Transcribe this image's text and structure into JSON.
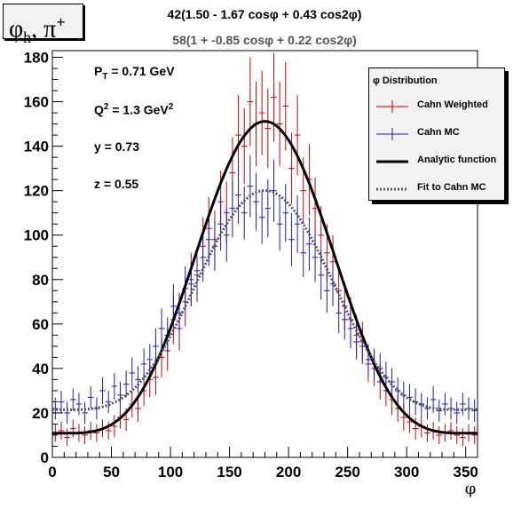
{
  "page": {
    "title_box": {
      "text": "φ",
      "subscript": "h",
      "separator": ", π",
      "superscript": "+"
    },
    "fit_line_1": "42(1.50 - 1.67 cosφ + 0.43 cos2φ)",
    "fit_line_2": "58(1 + -0.85 cosφ + 0.22 cos2φ)",
    "kinematics": {
      "pt_label": "P",
      "pt_sub": "T",
      "pt_value": " = 0.71 GeV",
      "q2_label": "Q",
      "q2_sup": "2",
      "q2_value": " = 1.3 GeV",
      "q2_unit_sup": "2",
      "y_text": "y = 0.73",
      "z_text": "z = 0.55"
    },
    "legend": {
      "header": "φ Distribution",
      "items": [
        {
          "label": "Cahn Weighted",
          "style": "errorbar",
          "color": "#cc0000"
        },
        {
          "label": "Cahn MC",
          "style": "errorbar",
          "color": "#1a1acc"
        },
        {
          "label": "Analytic function",
          "style": "solid",
          "color": "#000000"
        },
        {
          "label": "Fit to Cahn MC",
          "style": "dotted",
          "color": "#555555"
        }
      ]
    }
  },
  "chart_data": {
    "type": "line",
    "xlabel": "φ",
    "ylabel": "",
    "xlim": [
      0,
      360
    ],
    "ylim": [
      0,
      183
    ],
    "xticks": [
      0,
      50,
      100,
      150,
      200,
      250,
      300,
      350
    ],
    "yticks": [
      0,
      20,
      40,
      60,
      80,
      100,
      120,
      140,
      160,
      180
    ],
    "grid": false,
    "legend_position": "top-right",
    "bin_width": 5,
    "curves": [
      {
        "name": "Analytic function",
        "formula": "42(1.50 - 1.67 cosφ + 0.43 cos2φ)",
        "norm": 42,
        "a0": 1.5,
        "a1": -1.67,
        "a2": 0.43,
        "color": "#000000",
        "style": "solid"
      },
      {
        "name": "Fit to Cahn MC",
        "formula": "58(1 + -0.85 cosφ + 0.22 cos2φ)",
        "norm": 58,
        "a0": 1.0,
        "a1": -0.85,
        "a2": 0.22,
        "color": "#555555",
        "style": "dotted"
      }
    ],
    "series": [
      {
        "name": "Cahn Weighted",
        "color": "#cc0000",
        "x": [
          2.5,
          7.5,
          12.5,
          17.5,
          22.5,
          27.5,
          32.5,
          37.5,
          42.5,
          47.5,
          52.5,
          57.5,
          62.5,
          67.5,
          72.5,
          77.5,
          82.5,
          87.5,
          92.5,
          97.5,
          102.5,
          107.5,
          112.5,
          117.5,
          122.5,
          127.5,
          132.5,
          137.5,
          142.5,
          147.5,
          152.5,
          157.5,
          162.5,
          167.5,
          172.5,
          177.5,
          182.5,
          187.5,
          192.5,
          197.5,
          202.5,
          207.5,
          212.5,
          217.5,
          222.5,
          227.5,
          232.5,
          237.5,
          242.5,
          247.5,
          252.5,
          257.5,
          262.5,
          267.5,
          272.5,
          277.5,
          282.5,
          287.5,
          292.5,
          297.5,
          302.5,
          307.5,
          312.5,
          317.5,
          322.5,
          327.5,
          332.5,
          337.5,
          342.5,
          347.5,
          352.5,
          357.5
        ],
        "y": [
          11,
          12,
          9,
          13,
          11,
          10,
          12,
          11,
          13,
          12,
          14,
          18,
          17,
          24,
          22,
          30,
          35,
          36,
          45,
          48,
          62,
          58,
          70,
          80,
          82,
          95,
          103,
          98,
          115,
          110,
          128,
          145,
          140,
          160,
          150,
          155,
          148,
          162,
          150,
          158,
          130,
          145,
          120,
          125,
          112,
          100,
          92,
          88,
          75,
          68,
          62,
          55,
          52,
          42,
          40,
          34,
          30,
          26,
          22,
          18,
          16,
          13,
          14,
          11,
          12,
          10,
          11,
          12,
          10,
          9,
          11,
          10
        ],
        "err": [
          4,
          4,
          4,
          4,
          4,
          4,
          4,
          4,
          4,
          4,
          5,
          5,
          5,
          6,
          6,
          7,
          8,
          8,
          9,
          9,
          11,
          10,
          11,
          12,
          12,
          13,
          14,
          13,
          14,
          14,
          16,
          18,
          17,
          20,
          19,
          19,
          18,
          20,
          19,
          20,
          16,
          18,
          15,
          16,
          14,
          13,
          13,
          12,
          11,
          11,
          10,
          9,
          9,
          8,
          8,
          8,
          7,
          7,
          6,
          6,
          5,
          5,
          5,
          4,
          4,
          4,
          4,
          4,
          4,
          4,
          4,
          4
        ]
      },
      {
        "name": "Cahn MC",
        "color": "#1a1acc",
        "x": [
          2.5,
          7.5,
          12.5,
          17.5,
          22.5,
          27.5,
          32.5,
          37.5,
          42.5,
          47.5,
          52.5,
          57.5,
          62.5,
          67.5,
          72.5,
          77.5,
          82.5,
          87.5,
          92.5,
          97.5,
          102.5,
          107.5,
          112.5,
          117.5,
          122.5,
          127.5,
          132.5,
          137.5,
          142.5,
          147.5,
          152.5,
          157.5,
          162.5,
          167.5,
          172.5,
          177.5,
          182.5,
          187.5,
          192.5,
          197.5,
          202.5,
          207.5,
          212.5,
          217.5,
          222.5,
          227.5,
          232.5,
          237.5,
          242.5,
          247.5,
          252.5,
          257.5,
          262.5,
          267.5,
          272.5,
          277.5,
          282.5,
          287.5,
          292.5,
          297.5,
          302.5,
          307.5,
          312.5,
          317.5,
          322.5,
          327.5,
          332.5,
          337.5,
          342.5,
          347.5,
          352.5,
          357.5
        ],
        "y": [
          22,
          25,
          20,
          26,
          24,
          20,
          27,
          22,
          30,
          25,
          32,
          28,
          33,
          38,
          35,
          42,
          44,
          50,
          58,
          55,
          68,
          65,
          76,
          78,
          84,
          90,
          98,
          95,
          105,
          100,
          112,
          118,
          110,
          122,
          115,
          108,
          112,
          120,
          105,
          110,
          98,
          105,
          92,
          96,
          90,
          82,
          75,
          78,
          65,
          62,
          58,
          52,
          50,
          44,
          42,
          40,
          36,
          34,
          30,
          28,
          27,
          25,
          24,
          22,
          26,
          21,
          24,
          22,
          20,
          24,
          22,
          21
        ],
        "err": [
          5,
          5,
          5,
          5,
          5,
          5,
          5,
          5,
          6,
          5,
          6,
          6,
          6,
          7,
          6,
          7,
          7,
          8,
          9,
          8,
          10,
          9,
          10,
          10,
          11,
          11,
          12,
          11,
          12,
          12,
          13,
          13,
          12,
          14,
          13,
          12,
          13,
          14,
          12,
          13,
          12,
          13,
          11,
          12,
          11,
          11,
          10,
          10,
          9,
          9,
          9,
          8,
          8,
          7,
          7,
          7,
          7,
          6,
          6,
          6,
          6,
          6,
          5,
          5,
          6,
          5,
          5,
          5,
          5,
          5,
          5,
          5
        ]
      }
    ]
  }
}
